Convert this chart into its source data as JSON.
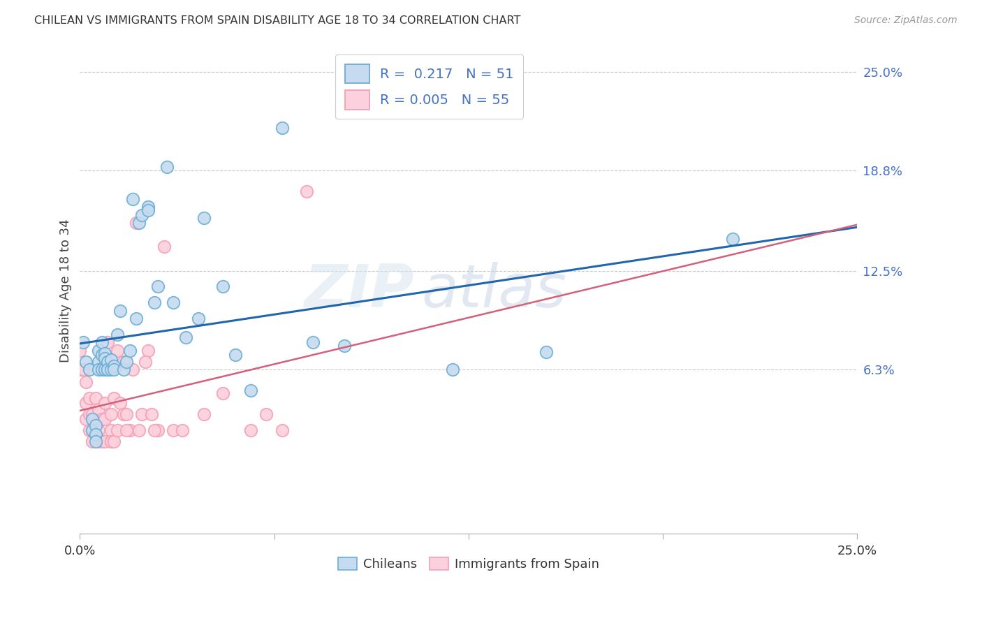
{
  "title": "CHILEAN VS IMMIGRANTS FROM SPAIN DISABILITY AGE 18 TO 34 CORRELATION CHART",
  "source": "Source: ZipAtlas.com",
  "xlabel_chileans": "Chileans",
  "xlabel_immigrants": "Immigrants from Spain",
  "ylabel": "Disability Age 18 to 34",
  "xmin": 0.0,
  "xmax": 0.25,
  "ymin": -0.04,
  "ymax": 0.265,
  "yticks": [
    0.063,
    0.125,
    0.188,
    0.25
  ],
  "ytick_labels": [
    "6.3%",
    "12.5%",
    "18.8%",
    "25.0%"
  ],
  "xticks": [
    0.0,
    0.25
  ],
  "xtick_labels": [
    "0.0%",
    "25.0%"
  ],
  "legend_R1": "0.217",
  "legend_N1": "51",
  "legend_R2": "0.005",
  "legend_N2": "55",
  "chilean_color": "#6baed6",
  "chilean_face": "#c6dbef",
  "immigrant_color": "#f4a0b5",
  "immigrant_face": "#fcd0dc",
  "trend_color_1": "#2166ac",
  "trend_color_2": "#d4607a",
  "watermark_zip": "ZIP",
  "watermark_atlas": "atlas",
  "chileans_x": [
    0.001,
    0.002,
    0.003,
    0.004,
    0.004,
    0.005,
    0.005,
    0.005,
    0.006,
    0.006,
    0.006,
    0.007,
    0.007,
    0.007,
    0.008,
    0.008,
    0.008,
    0.009,
    0.009,
    0.009,
    0.01,
    0.01,
    0.011,
    0.011,
    0.012,
    0.013,
    0.014,
    0.015,
    0.016,
    0.017,
    0.018,
    0.019,
    0.02,
    0.022,
    0.022,
    0.024,
    0.025,
    0.028,
    0.03,
    0.034,
    0.038,
    0.04,
    0.05,
    0.055,
    0.065,
    0.075,
    0.085,
    0.12,
    0.15,
    0.21,
    0.046
  ],
  "chileans_y": [
    0.08,
    0.068,
    0.063,
    0.032,
    0.025,
    0.028,
    0.022,
    0.018,
    0.075,
    0.068,
    0.063,
    0.08,
    0.072,
    0.063,
    0.073,
    0.07,
    0.063,
    0.063,
    0.068,
    0.063,
    0.063,
    0.069,
    0.065,
    0.063,
    0.085,
    0.1,
    0.063,
    0.068,
    0.075,
    0.17,
    0.095,
    0.155,
    0.16,
    0.165,
    0.163,
    0.105,
    0.115,
    0.19,
    0.105,
    0.083,
    0.095,
    0.158,
    0.072,
    0.05,
    0.215,
    0.08,
    0.078,
    0.063,
    0.074,
    0.145,
    0.115
  ],
  "immigrants_x": [
    0.0,
    0.0,
    0.001,
    0.001,
    0.002,
    0.002,
    0.002,
    0.003,
    0.003,
    0.003,
    0.004,
    0.004,
    0.004,
    0.005,
    0.005,
    0.006,
    0.006,
    0.006,
    0.007,
    0.007,
    0.008,
    0.008,
    0.008,
    0.009,
    0.01,
    0.01,
    0.011,
    0.011,
    0.012,
    0.013,
    0.014,
    0.014,
    0.015,
    0.016,
    0.017,
    0.018,
    0.019,
    0.02,
    0.022,
    0.023,
    0.025,
    0.027,
    0.03,
    0.033,
    0.04,
    0.046,
    0.055,
    0.06,
    0.065,
    0.073,
    0.021,
    0.024,
    0.01,
    0.012,
    0.015
  ],
  "immigrants_y": [
    0.063,
    0.075,
    0.063,
    0.063,
    0.055,
    0.042,
    0.032,
    0.045,
    0.035,
    0.025,
    0.035,
    0.025,
    0.018,
    0.045,
    0.022,
    0.038,
    0.025,
    0.018,
    0.032,
    0.018,
    0.042,
    0.032,
    0.018,
    0.08,
    0.025,
    0.018,
    0.045,
    0.018,
    0.025,
    0.042,
    0.068,
    0.035,
    0.035,
    0.025,
    0.063,
    0.155,
    0.025,
    0.035,
    0.075,
    0.035,
    0.025,
    0.14,
    0.025,
    0.025,
    0.035,
    0.048,
    0.025,
    0.035,
    0.025,
    0.175,
    0.068,
    0.025,
    0.035,
    0.075,
    0.025
  ]
}
